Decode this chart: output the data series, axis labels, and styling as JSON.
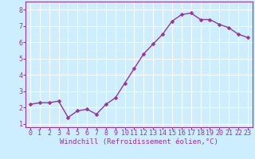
{
  "x": [
    0,
    1,
    2,
    3,
    4,
    5,
    6,
    7,
    8,
    9,
    10,
    11,
    12,
    13,
    14,
    15,
    16,
    17,
    18,
    19,
    20,
    21,
    22,
    23
  ],
  "y": [
    2.2,
    2.3,
    2.3,
    2.4,
    1.4,
    1.8,
    1.9,
    1.6,
    2.2,
    2.6,
    3.5,
    4.4,
    5.3,
    5.9,
    6.5,
    7.3,
    7.7,
    7.8,
    7.4,
    7.4,
    7.1,
    6.9,
    6.5,
    6.3
  ],
  "line_color": "#993399",
  "marker": "D",
  "marker_size": 2.5,
  "bg_color": "#cceeff",
  "grid_color": "#ffffff",
  "xlabel": "Windchill (Refroidissement éolien,°C)",
  "xlabel_color": "#993399",
  "tick_color": "#993399",
  "ylim": [
    0.8,
    8.5
  ],
  "yticks": [
    1,
    2,
    3,
    4,
    5,
    6,
    7,
    8
  ],
  "xticks": [
    0,
    1,
    2,
    3,
    4,
    5,
    6,
    7,
    8,
    9,
    10,
    11,
    12,
    13,
    14,
    15,
    16,
    17,
    18,
    19,
    20,
    21,
    22,
    23
  ],
  "xlabel_fontsize": 6.5,
  "tick_fontsize": 6,
  "line_width": 1.0,
  "spine_color": "#993399"
}
